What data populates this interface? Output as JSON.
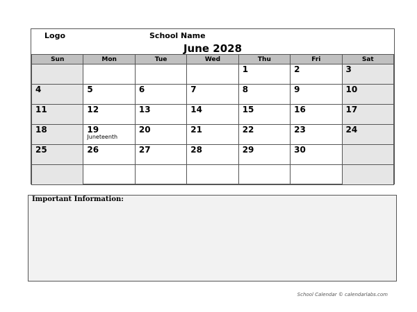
{
  "header": {
    "logo": "Logo",
    "school_name": "School Name",
    "month_title": "June 2028"
  },
  "weekdays": [
    "Sun",
    "Mon",
    "Tue",
    "Wed",
    "Thu",
    "Fri",
    "Sat"
  ],
  "weeks": [
    [
      {
        "d": ""
      },
      {
        "d": ""
      },
      {
        "d": ""
      },
      {
        "d": ""
      },
      {
        "d": "1"
      },
      {
        "d": "2"
      },
      {
        "d": "3"
      }
    ],
    [
      {
        "d": "4"
      },
      {
        "d": "5"
      },
      {
        "d": "6"
      },
      {
        "d": "7"
      },
      {
        "d": "8"
      },
      {
        "d": "9"
      },
      {
        "d": "10"
      }
    ],
    [
      {
        "d": "11"
      },
      {
        "d": "12"
      },
      {
        "d": "13"
      },
      {
        "d": "14"
      },
      {
        "d": "15"
      },
      {
        "d": "16"
      },
      {
        "d": "17"
      }
    ],
    [
      {
        "d": "18"
      },
      {
        "d": "19",
        "note": "Juneteenth"
      },
      {
        "d": "20"
      },
      {
        "d": "21"
      },
      {
        "d": "22"
      },
      {
        "d": "23"
      },
      {
        "d": "24"
      }
    ],
    [
      {
        "d": "25"
      },
      {
        "d": "26"
      },
      {
        "d": "27"
      },
      {
        "d": "28"
      },
      {
        "d": "29"
      },
      {
        "d": "30"
      },
      {
        "d": ""
      }
    ],
    [
      {
        "d": ""
      },
      {
        "d": ""
      },
      {
        "d": ""
      },
      {
        "d": ""
      },
      {
        "d": ""
      },
      {
        "d": ""
      },
      {
        "d": ""
      }
    ]
  ],
  "info": {
    "label": "Important Information:"
  },
  "footer": "School Calendar © calendarlabs.com",
  "colors": {
    "weekend": "#e6e6e6",
    "header_row": "#c0c0c0",
    "info_bg": "#f2f2f2"
  }
}
